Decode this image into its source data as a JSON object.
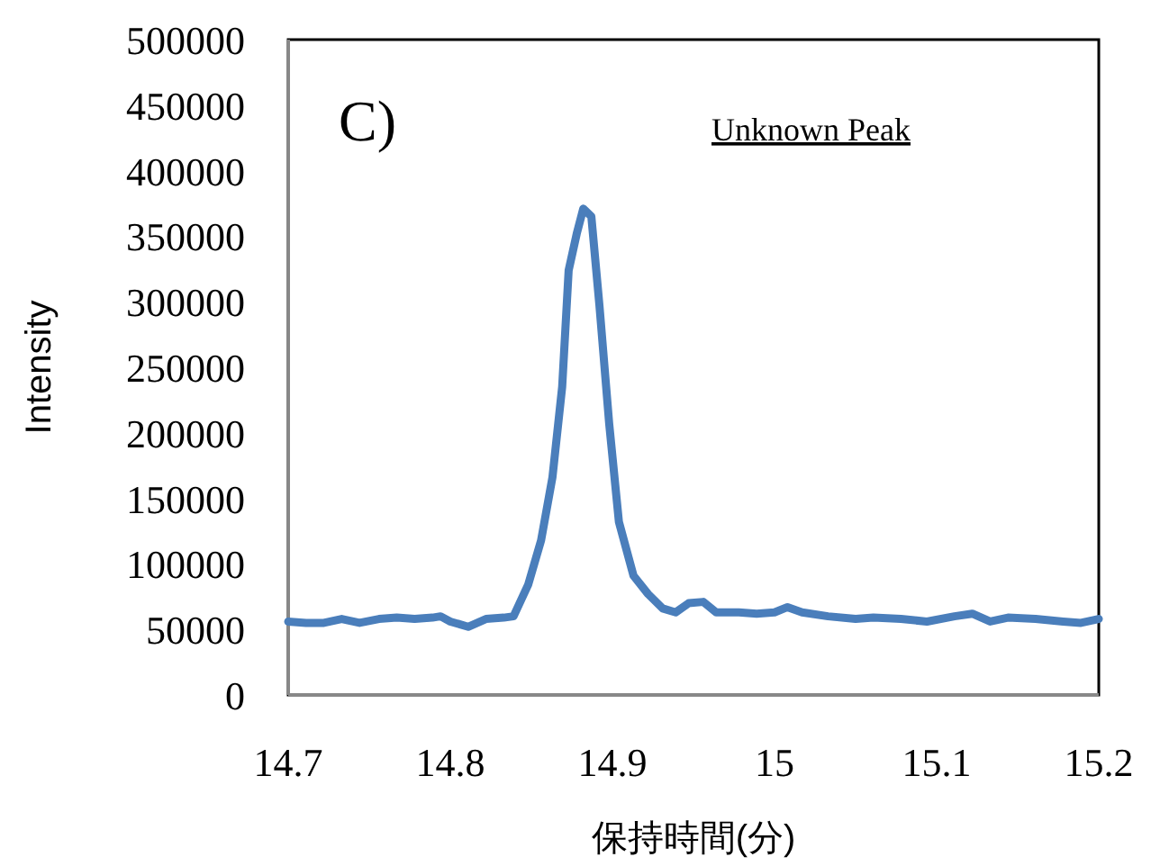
{
  "chart_data": {
    "type": "line",
    "xlabel": "保持時間(分)",
    "ylabel": "Intensity",
    "annotations": [
      "C)",
      "Unknown Peak"
    ],
    "xlim": [
      14.7,
      15.2
    ],
    "ylim": [
      0,
      500000
    ],
    "xticks": [
      14.7,
      14.8,
      14.9,
      15,
      15.1,
      15.2
    ],
    "yticks": [
      0,
      50000,
      100000,
      150000,
      200000,
      250000,
      300000,
      350000,
      400000,
      450000,
      500000
    ],
    "x": [
      14.7,
      14.711,
      14.722,
      14.733,
      14.744,
      14.756,
      14.767,
      14.778,
      14.789,
      14.794,
      14.8,
      14.811,
      14.822,
      14.833,
      14.839,
      14.848,
      14.856,
      14.863,
      14.869,
      14.873,
      14.878,
      14.882,
      14.887,
      14.892,
      14.898,
      14.904,
      14.913,
      14.922,
      14.931,
      14.939,
      14.947,
      14.956,
      14.964,
      14.978,
      14.989,
      15,
      15.008,
      15.017,
      15.033,
      15.05,
      15.061,
      15.078,
      15.094,
      15.111,
      15.122,
      15.133,
      15.144,
      15.161,
      15.178,
      15.189,
      15.2
    ],
    "series": [
      {
        "color": "#4a7ebb",
        "values": [
          56000,
          55000,
          55000,
          58000,
          55000,
          58000,
          59000,
          58000,
          59000,
          60000,
          56000,
          52000,
          58000,
          59000,
          60000,
          84000,
          118000,
          166000,
          235000,
          324000,
          352000,
          371000,
          365000,
          297000,
          207000,
          132000,
          91000,
          77000,
          66000,
          63000,
          70000,
          71000,
          63000,
          63000,
          62000,
          63000,
          67000,
          63000,
          60000,
          58000,
          59000,
          58000,
          56000,
          60000,
          62000,
          56000,
          59000,
          58000,
          56000,
          55000,
          58000
        ]
      }
    ]
  }
}
